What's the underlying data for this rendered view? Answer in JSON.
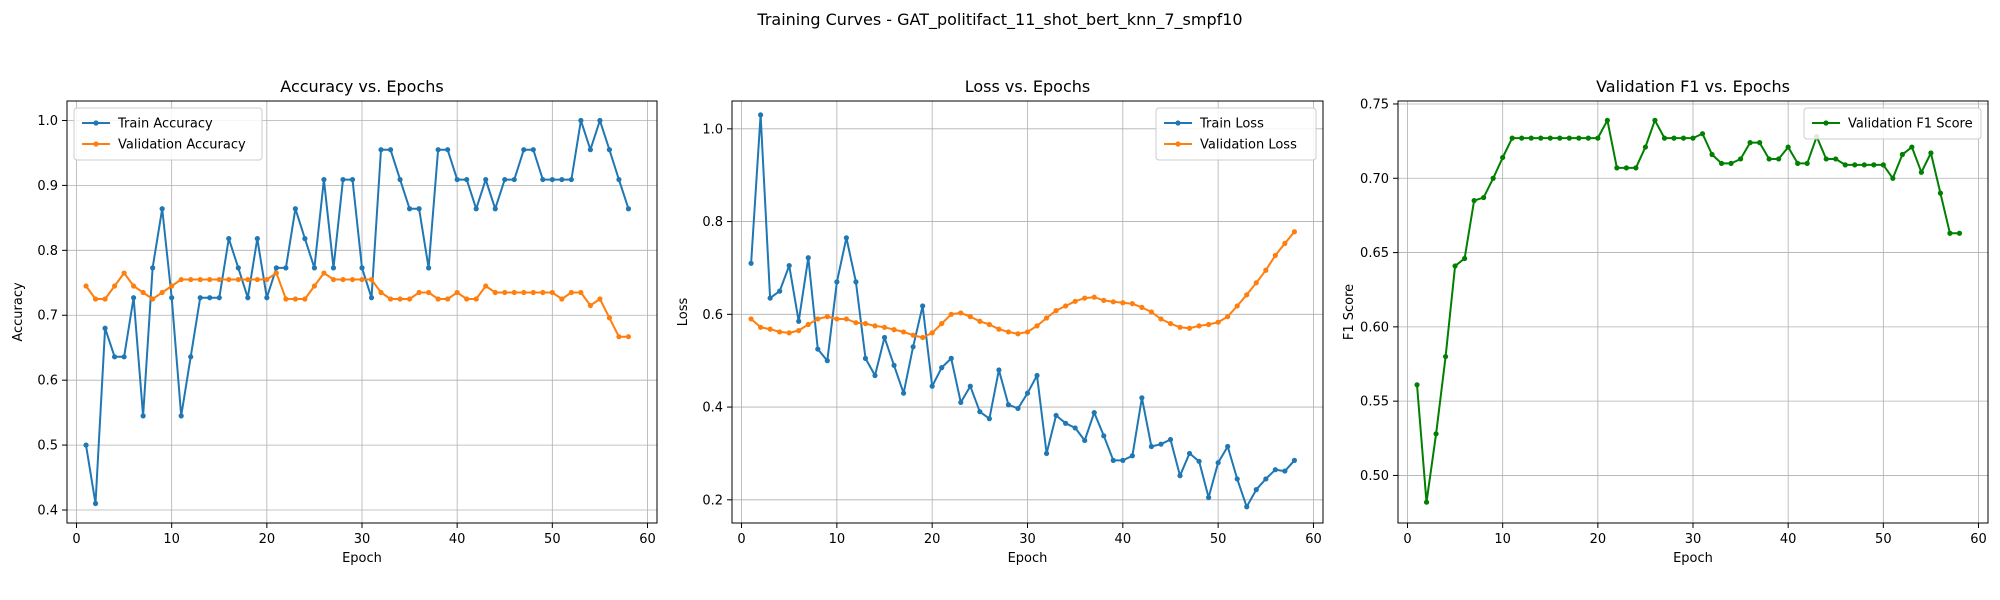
{
  "figure": {
    "suptitle": "Training Curves - GAT_politifact_11_shot_bert_knn_7_smpf10"
  },
  "chart_data": [
    {
      "type": "line",
      "title": "Accuracy vs. Epochs",
      "xlabel": "Epoch",
      "ylabel": "Accuracy",
      "xlim": [
        -1,
        61
      ],
      "ylim": [
        0.38,
        1.03
      ],
      "xticks": [
        0,
        10,
        20,
        30,
        40,
        50,
        60
      ],
      "yticks": [
        0.4,
        0.5,
        0.6,
        0.7,
        0.8,
        0.9,
        1.0
      ],
      "ytick_labels": [
        "0.4",
        "0.5",
        "0.6",
        "0.7",
        "0.8",
        "0.9",
        "1.0"
      ],
      "grid": true,
      "legend_loc": "upper left",
      "series": [
        {
          "name": "Train Accuracy",
          "color": "#1f77b4",
          "x": [
            1,
            2,
            3,
            4,
            5,
            6,
            7,
            8,
            9,
            10,
            11,
            12,
            13,
            14,
            15,
            16,
            17,
            18,
            19,
            20,
            21,
            22,
            23,
            24,
            25,
            26,
            27,
            28,
            29,
            30,
            31,
            32,
            33,
            34,
            35,
            36,
            37,
            38,
            39,
            40,
            41,
            42,
            43,
            44,
            45,
            46,
            47,
            48,
            49,
            50,
            51,
            52,
            53,
            54,
            55,
            56,
            57,
            58
          ],
          "y": [
            0.5,
            0.41,
            0.68,
            0.636,
            0.636,
            0.727,
            0.545,
            0.773,
            0.864,
            0.727,
            0.545,
            0.636,
            0.727,
            0.727,
            0.727,
            0.818,
            0.773,
            0.727,
            0.818,
            0.727,
            0.773,
            0.773,
            0.864,
            0.818,
            0.773,
            0.909,
            0.773,
            0.909,
            0.909,
            0.773,
            0.727,
            0.955,
            0.955,
            0.909,
            0.864,
            0.864,
            0.773,
            0.955,
            0.955,
            0.909,
            0.909,
            0.864,
            0.909,
            0.864,
            0.909,
            0.909,
            0.955,
            0.955,
            0.909,
            0.909,
            0.909,
            0.909,
            1.0,
            0.955,
            1.0,
            0.955,
            0.909,
            0.864
          ]
        },
        {
          "name": "Validation Accuracy",
          "color": "#ff7f0e",
          "x": [
            1,
            2,
            3,
            4,
            5,
            6,
            7,
            8,
            9,
            10,
            11,
            12,
            13,
            14,
            15,
            16,
            17,
            18,
            19,
            20,
            21,
            22,
            23,
            24,
            25,
            26,
            27,
            28,
            29,
            30,
            31,
            32,
            33,
            34,
            35,
            36,
            37,
            38,
            39,
            40,
            41,
            42,
            43,
            44,
            45,
            46,
            47,
            48,
            49,
            50,
            51,
            52,
            53,
            54,
            55,
            56,
            57,
            58
          ],
          "y": [
            0.745,
            0.725,
            0.725,
            0.745,
            0.765,
            0.745,
            0.735,
            0.725,
            0.735,
            0.745,
            0.755,
            0.755,
            0.755,
            0.755,
            0.755,
            0.755,
            0.755,
            0.755,
            0.755,
            0.755,
            0.765,
            0.725,
            0.725,
            0.725,
            0.745,
            0.765,
            0.755,
            0.755,
            0.755,
            0.755,
            0.755,
            0.735,
            0.725,
            0.725,
            0.725,
            0.735,
            0.735,
            0.725,
            0.725,
            0.735,
            0.725,
            0.725,
            0.745,
            0.735,
            0.735,
            0.735,
            0.735,
            0.735,
            0.735,
            0.735,
            0.725,
            0.735,
            0.735,
            0.715,
            0.725,
            0.696,
            0.667,
            0.667
          ]
        }
      ]
    },
    {
      "type": "line",
      "title": "Loss vs. Epochs",
      "xlabel": "Epoch",
      "ylabel": "Loss",
      "xlim": [
        -1,
        61
      ],
      "ylim": [
        0.15,
        1.06
      ],
      "xticks": [
        0,
        10,
        20,
        30,
        40,
        50,
        60
      ],
      "yticks": [
        0.2,
        0.4,
        0.6,
        0.8,
        1.0
      ],
      "ytick_labels": [
        "0.2",
        "0.4",
        "0.6",
        "0.8",
        "1.0"
      ],
      "grid": true,
      "legend_loc": "upper right",
      "series": [
        {
          "name": "Train Loss",
          "color": "#1f77b4",
          "x": [
            1,
            2,
            3,
            4,
            5,
            6,
            7,
            8,
            9,
            10,
            11,
            12,
            13,
            14,
            15,
            16,
            17,
            18,
            19,
            20,
            21,
            22,
            23,
            24,
            25,
            26,
            27,
            28,
            29,
            30,
            31,
            32,
            33,
            34,
            35,
            36,
            37,
            38,
            39,
            40,
            41,
            42,
            43,
            44,
            45,
            46,
            47,
            48,
            49,
            50,
            51,
            52,
            53,
            54,
            55,
            56,
            57,
            58
          ],
          "y": [
            0.71,
            1.03,
            0.635,
            0.65,
            0.705,
            0.585,
            0.722,
            0.525,
            0.5,
            0.67,
            0.765,
            0.67,
            0.505,
            0.468,
            0.55,
            0.49,
            0.43,
            0.53,
            0.618,
            0.445,
            0.485,
            0.505,
            0.41,
            0.445,
            0.39,
            0.375,
            0.48,
            0.405,
            0.397,
            0.43,
            0.468,
            0.3,
            0.382,
            0.365,
            0.355,
            0.328,
            0.388,
            0.338,
            0.285,
            0.285,
            0.295,
            0.42,
            0.315,
            0.32,
            0.33,
            0.252,
            0.3,
            0.283,
            0.205,
            0.28,
            0.315,
            0.245,
            0.185,
            0.222,
            0.245,
            0.265,
            0.262,
            0.285
          ]
        },
        {
          "name": "Validation Loss",
          "color": "#ff7f0e",
          "x": [
            1,
            2,
            3,
            4,
            5,
            6,
            7,
            8,
            9,
            10,
            11,
            12,
            13,
            14,
            15,
            16,
            17,
            18,
            19,
            20,
            21,
            22,
            23,
            24,
            25,
            26,
            27,
            28,
            29,
            30,
            31,
            32,
            33,
            34,
            35,
            36,
            37,
            38,
            39,
            40,
            41,
            42,
            43,
            44,
            45,
            46,
            47,
            48,
            49,
            50,
            51,
            52,
            53,
            54,
            55,
            56,
            57,
            58
          ],
          "y": [
            0.59,
            0.572,
            0.568,
            0.562,
            0.56,
            0.565,
            0.578,
            0.59,
            0.595,
            0.59,
            0.59,
            0.582,
            0.58,
            0.575,
            0.572,
            0.567,
            0.562,
            0.555,
            0.55,
            0.56,
            0.58,
            0.6,
            0.603,
            0.595,
            0.585,
            0.578,
            0.568,
            0.562,
            0.558,
            0.562,
            0.575,
            0.592,
            0.608,
            0.618,
            0.628,
            0.635,
            0.637,
            0.63,
            0.627,
            0.625,
            0.623,
            0.615,
            0.605,
            0.59,
            0.58,
            0.572,
            0.57,
            0.575,
            0.578,
            0.583,
            0.595,
            0.618,
            0.642,
            0.668,
            0.695,
            0.727,
            0.753,
            0.778
          ]
        }
      ]
    },
    {
      "type": "line",
      "title": "Validation F1 vs. Epochs",
      "xlabel": "Epoch",
      "ylabel": "F1 Score",
      "xlim": [
        -1,
        61
      ],
      "ylim": [
        0.468,
        0.752
      ],
      "xticks": [
        0,
        10,
        20,
        30,
        40,
        50,
        60
      ],
      "yticks": [
        0.5,
        0.55,
        0.6,
        0.65,
        0.7,
        0.75
      ],
      "ytick_labels": [
        "0.50",
        "0.55",
        "0.60",
        "0.65",
        "0.70",
        "0.75"
      ],
      "grid": true,
      "legend_loc": "upper right",
      "series": [
        {
          "name": "Validation F1 Score",
          "color": "#008000",
          "x": [
            1,
            2,
            3,
            4,
            5,
            6,
            7,
            8,
            9,
            10,
            11,
            12,
            13,
            14,
            15,
            16,
            17,
            18,
            19,
            20,
            21,
            22,
            23,
            24,
            25,
            26,
            27,
            28,
            29,
            30,
            31,
            32,
            33,
            34,
            35,
            36,
            37,
            38,
            39,
            40,
            41,
            42,
            43,
            44,
            45,
            46,
            47,
            48,
            49,
            50,
            51,
            52,
            53,
            54,
            55,
            56,
            57,
            58
          ],
          "y": [
            0.561,
            0.482,
            0.528,
            0.58,
            0.641,
            0.646,
            0.685,
            0.687,
            0.7,
            0.714,
            0.727,
            0.727,
            0.727,
            0.727,
            0.727,
            0.727,
            0.727,
            0.727,
            0.727,
            0.727,
            0.739,
            0.707,
            0.707,
            0.707,
            0.721,
            0.739,
            0.727,
            0.727,
            0.727,
            0.727,
            0.73,
            0.716,
            0.71,
            0.71,
            0.713,
            0.724,
            0.724,
            0.713,
            0.713,
            0.721,
            0.71,
            0.71,
            0.728,
            0.713,
            0.713,
            0.709,
            0.709,
            0.709,
            0.709,
            0.709,
            0.7,
            0.716,
            0.721,
            0.704,
            0.717,
            0.69,
            0.663,
            0.663
          ]
        }
      ]
    }
  ]
}
